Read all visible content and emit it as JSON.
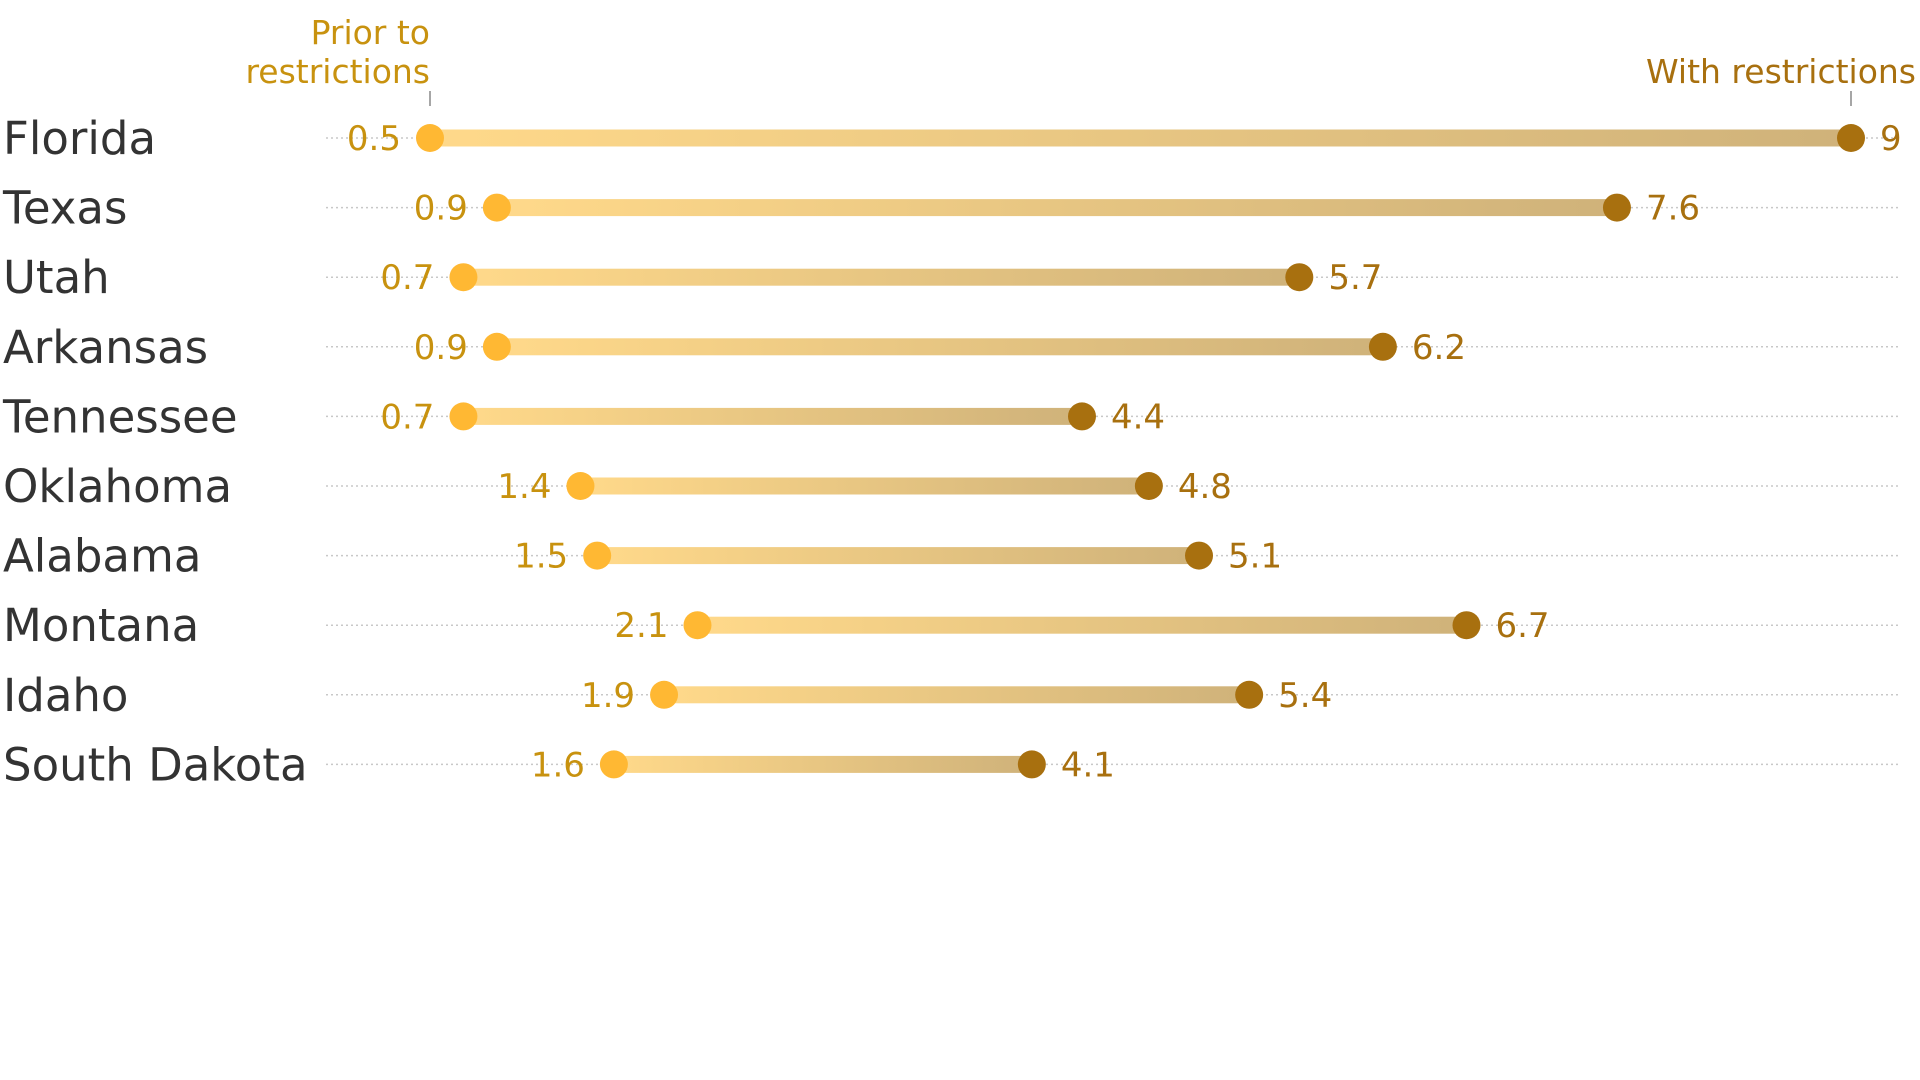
{
  "chart_data": {
    "type": "dumbbell",
    "header": {
      "before_line1": "Prior to",
      "before_line2": "restrictions",
      "after": "With restrictions"
    },
    "series": [
      {
        "name": "Prior to restrictions",
        "color": "#FFB833"
      },
      {
        "name": "With restrictions",
        "color": "#A8700F"
      }
    ],
    "categories": [
      "Florida",
      "Texas",
      "Utah",
      "Arkansas",
      "Tennessee",
      "Oklahoma",
      "Alabama",
      "Montana",
      "Idaho",
      "South Dakota"
    ],
    "before": [
      0.5,
      0.9,
      0.7,
      0.9,
      0.7,
      1.4,
      1.5,
      2.1,
      1.9,
      1.6
    ],
    "after": [
      9,
      7.6,
      5.7,
      6.2,
      4.4,
      4.8,
      5.1,
      6.7,
      5.4,
      4.1
    ],
    "before_labels": [
      "0.5",
      "0.9",
      "0.7",
      "0.9",
      "0.7",
      "1.4",
      "1.5",
      "2.1",
      "1.9",
      "1.6"
    ],
    "after_labels": [
      "9",
      "7.6",
      "5.7",
      "6.2",
      "4.4",
      "4.8",
      "5.1",
      "6.7",
      "5.4",
      "4.1"
    ],
    "xlim": [
      0.5,
      9
    ],
    "colors": {
      "before_dot": "#FFB833",
      "after_dot": "#A8700F",
      "before_text": "#C8920F",
      "after_text": "#A8700F",
      "bar_start": "#FFD98A",
      "bar_end": "#CFB27A",
      "gridline": "#C8C8C8",
      "state_text": "#333333"
    }
  }
}
